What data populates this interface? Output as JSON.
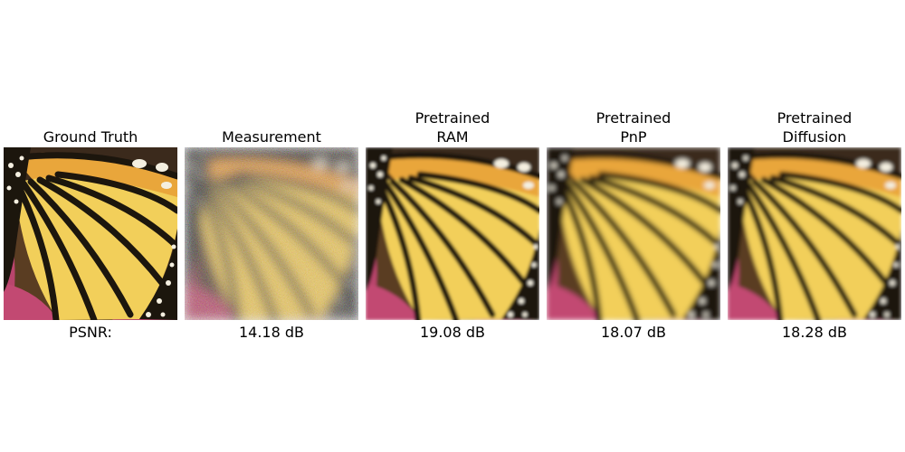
{
  "panels": [
    {
      "title_lines": [
        "Ground Truth"
      ],
      "metric": "PSNR:",
      "quality": "sharp"
    },
    {
      "title_lines": [
        "Measurement"
      ],
      "metric": "14.18 dB",
      "quality": "noisy"
    },
    {
      "title_lines": [
        "Pretrained",
        "RAM"
      ],
      "metric": "19.08 dB",
      "quality": "blur-light"
    },
    {
      "title_lines": [
        "Pretrained",
        "PnP"
      ],
      "metric": "18.07 dB",
      "quality": "blur-strong"
    },
    {
      "title_lines": [
        "Pretrained",
        "Diffusion"
      ],
      "metric": "18.28 dB",
      "quality": "blur-medium"
    }
  ],
  "colors": {
    "wing_orange": "#e9a63a",
    "wing_yellow": "#f2cf5a",
    "vein_black": "#1c1410",
    "flower_pink": "#c24a72",
    "background_brown": "#6b4a2a"
  }
}
